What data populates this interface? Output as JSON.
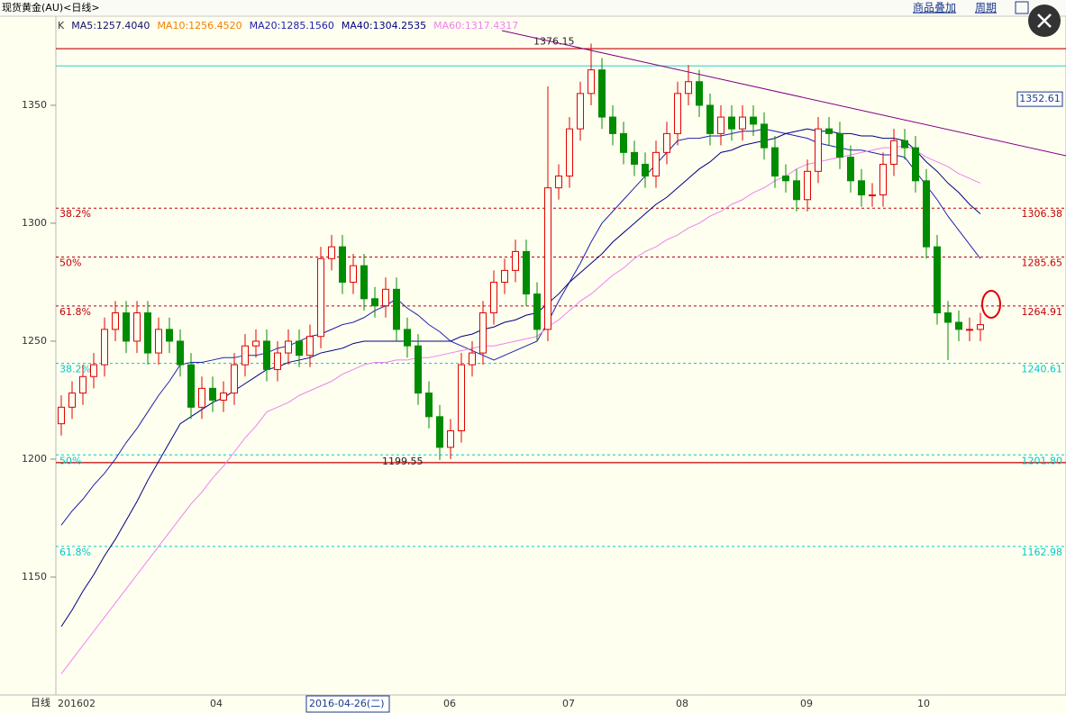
{
  "header": {
    "title": "现货黄金(AU)<日线>",
    "menu": [
      "商品叠加",
      "周期"
    ]
  },
  "chart_data": {
    "type": "candlestick",
    "legend": [
      {
        "label": "K",
        "color": "#333333"
      },
      {
        "label": "MA5:1257.4040",
        "color": "#10106a"
      },
      {
        "label": "MA10:1256.4520",
        "color": "#f08000"
      },
      {
        "label": "MA20:1285.1560",
        "color": "#2020b0"
      },
      {
        "label": "MA40:1304.2535",
        "color": "#000080"
      },
      {
        "label": "MA60:1317.4317",
        "color": "#ee82ee"
      }
    ],
    "up_color": "#e00000",
    "down_color": "#008c00",
    "open": [
      1215,
      1222,
      1228,
      1235,
      1240,
      1255,
      1262,
      1250,
      1262,
      1245,
      1255,
      1250,
      1240,
      1222,
      1230,
      1225,
      1228,
      1240,
      1248,
      1250,
      1238,
      1245,
      1250,
      1244,
      1252,
      1285,
      1290,
      1275,
      1282,
      1268,
      1265,
      1272,
      1255,
      1248,
      1228,
      1218,
      1205,
      1212,
      1240,
      1245,
      1262,
      1275,
      1280,
      1288,
      1270,
      1255,
      1315,
      1320,
      1340,
      1355,
      1365,
      1345,
      1338,
      1330,
      1325,
      1320,
      1330,
      1338,
      1355,
      1360,
      1350,
      1338,
      1345,
      1340,
      1345,
      1342,
      1332,
      1320,
      1318,
      1310,
      1322,
      1340,
      1338,
      1328,
      1318,
      1312,
      1312,
      1325,
      1335,
      1332,
      1318,
      1290,
      1262,
      1258,
      1255,
      1255
    ],
    "high": [
      1227,
      1233,
      1240,
      1245,
      1260,
      1267,
      1267,
      1267,
      1267,
      1260,
      1260,
      1255,
      1245,
      1235,
      1235,
      1233,
      1245,
      1253,
      1255,
      1255,
      1250,
      1255,
      1255,
      1257,
      1290,
      1295,
      1295,
      1287,
      1287,
      1273,
      1277,
      1277,
      1260,
      1253,
      1233,
      1223,
      1217,
      1245,
      1250,
      1267,
      1280,
      1285,
      1293,
      1293,
      1275,
      1358,
      1325,
      1345,
      1360,
      1376.15,
      1370,
      1350,
      1343,
      1335,
      1330,
      1335,
      1343,
      1360,
      1367,
      1365,
      1355,
      1350,
      1350,
      1350,
      1350,
      1347,
      1337,
      1325,
      1323,
      1327,
      1345,
      1345,
      1343,
      1333,
      1323,
      1317,
      1330,
      1340,
      1340,
      1337,
      1323,
      1295,
      1267,
      1263,
      1260,
      1262
    ],
    "low": [
      1210,
      1217,
      1223,
      1230,
      1235,
      1250,
      1245,
      1245,
      1240,
      1240,
      1245,
      1235,
      1217,
      1217,
      1220,
      1220,
      1223,
      1235,
      1243,
      1233,
      1233,
      1240,
      1239,
      1239,
      1247,
      1280,
      1270,
      1270,
      1263,
      1260,
      1260,
      1250,
      1243,
      1223,
      1213,
      1199.55,
      1200,
      1207,
      1235,
      1240,
      1257,
      1270,
      1275,
      1265,
      1250,
      1250,
      1310,
      1315,
      1335,
      1350,
      1340,
      1333,
      1325,
      1320,
      1315,
      1315,
      1325,
      1333,
      1350,
      1345,
      1333,
      1333,
      1335,
      1335,
      1337,
      1327,
      1315,
      1313,
      1305,
      1305,
      1317,
      1333,
      1323,
      1313,
      1307,
      1307,
      1307,
      1320,
      1327,
      1313,
      1285,
      1257,
      1242,
      1250,
      1250,
      1250
    ],
    "close": [
      1222,
      1228,
      1235,
      1240,
      1255,
      1262,
      1250,
      1262,
      1245,
      1255,
      1250,
      1240,
      1222,
      1230,
      1225,
      1228,
      1240,
      1248,
      1250,
      1238,
      1245,
      1250,
      1244,
      1252,
      1285,
      1290,
      1275,
      1282,
      1268,
      1265,
      1272,
      1255,
      1248,
      1228,
      1218,
      1205,
      1212,
      1240,
      1245,
      1262,
      1275,
      1280,
      1288,
      1270,
      1255,
      1315,
      1320,
      1340,
      1355,
      1365,
      1345,
      1338,
      1330,
      1325,
      1320,
      1330,
      1338,
      1355,
      1360,
      1350,
      1338,
      1345,
      1340,
      1345,
      1342,
      1332,
      1320,
      1318,
      1310,
      1322,
      1340,
      1338,
      1328,
      1318,
      1312,
      1312,
      1325,
      1335,
      1332,
      1318,
      1290,
      1262,
      1258,
      1255,
      1255,
      1257
    ],
    "series": [
      {
        "color": "#2020b0",
        "values": [
          1172,
          1178,
          1183,
          1189,
          1194,
          1200,
          1207,
          1213,
          1220,
          1227,
          1233,
          1240,
          1241,
          1241,
          1242,
          1243,
          1243,
          1244,
          1244,
          1245,
          1247,
          1248,
          1250,
          1252,
          1253,
          1255,
          1257,
          1258,
          1260,
          1263,
          1265,
          1268,
          1264,
          1261,
          1257,
          1254,
          1250,
          1248,
          1246,
          1244,
          1242,
          1244,
          1246,
          1248,
          1250,
          1258,
          1267,
          1275,
          1283,
          1292,
          1300,
          1305,
          1310,
          1315,
          1320,
          1325,
          1330,
          1335,
          1336,
          1336,
          1337,
          1337,
          1338,
          1339,
          1339,
          1340,
          1339,
          1338,
          1337,
          1336,
          1334,
          1333,
          1332,
          1331,
          1331,
          1330,
          1329,
          1329,
          1328,
          1322,
          1316,
          1310,
          1303,
          1297,
          1291,
          1285
        ]
      },
      {
        "color": "#000080",
        "values": [
          1129,
          1136,
          1144,
          1151,
          1159,
          1166,
          1174,
          1182,
          1191,
          1199,
          1207,
          1215,
          1218,
          1221,
          1224,
          1226,
          1229,
          1232,
          1235,
          1238,
          1239,
          1241,
          1242,
          1243,
          1245,
          1246,
          1247,
          1249,
          1250,
          1250,
          1250,
          1250,
          1250,
          1250,
          1250,
          1250,
          1250,
          1252,
          1253,
          1255,
          1256,
          1258,
          1259,
          1261,
          1262,
          1266,
          1270,
          1275,
          1279,
          1283,
          1287,
          1292,
          1296,
          1300,
          1304,
          1308,
          1311,
          1315,
          1319,
          1323,
          1326,
          1330,
          1331,
          1333,
          1334,
          1335,
          1336,
          1338,
          1339,
          1340,
          1339,
          1339,
          1338,
          1338,
          1337,
          1337,
          1336,
          1336,
          1335,
          1331,
          1326,
          1322,
          1317,
          1313,
          1308,
          1304
        ]
      },
      {
        "color": "#ee82ee",
        "values": [
          1109,
          1115,
          1121,
          1127,
          1133,
          1139,
          1145,
          1151,
          1157,
          1163,
          1169,
          1175,
          1181,
          1186,
          1192,
          1197,
          1203,
          1209,
          1214,
          1220,
          1222,
          1224,
          1227,
          1229,
          1231,
          1233,
          1236,
          1238,
          1240,
          1241,
          1241,
          1242,
          1242,
          1243,
          1243,
          1244,
          1245,
          1246,
          1247,
          1248,
          1248,
          1249,
          1250,
          1251,
          1252,
          1256,
          1259,
          1263,
          1267,
          1270,
          1274,
          1278,
          1281,
          1285,
          1288,
          1290,
          1293,
          1295,
          1298,
          1300,
          1303,
          1305,
          1308,
          1310,
          1313,
          1315,
          1318,
          1320,
          1323,
          1325,
          1326,
          1327,
          1328,
          1329,
          1330,
          1331,
          1332,
          1332,
          1333,
          1331,
          1328,
          1326,
          1324,
          1321,
          1319,
          1317
        ]
      }
    ],
    "ylim": [
      1100,
      1387
    ],
    "yticks": [
      1150,
      1200,
      1250,
      1300,
      1350
    ],
    "x_axis_title": "日线",
    "x_labels": [
      "201602",
      "04",
      "2016-04-26(二)",
      "06",
      "07",
      "08",
      "09",
      "10"
    ],
    "levels": [
      {
        "name": "38.2%",
        "value": 1306.38,
        "color": "#c00000"
      },
      {
        "name": "50%",
        "value": 1285.65,
        "color": "#c00000"
      },
      {
        "name": "61.8%",
        "value": 1264.91,
        "color": "#c00000"
      },
      {
        "name": "38.2%",
        "value": 1240.61,
        "color": "#00c8c8"
      },
      {
        "name": "50%",
        "value": 1201.8,
        "value_label": "1201.80",
        "color": "#00c8c8"
      },
      {
        "name": "61.8%",
        "value": 1162.98,
        "color": "#00c8c8"
      }
    ],
    "lines": [
      {
        "value": 1374,
        "color": "#c00000"
      },
      {
        "value": 1366.7,
        "color": "#40d0d0"
      },
      {
        "value": 1198.5,
        "color": "#c00000"
      }
    ],
    "cursor_price": 1352.61
  }
}
